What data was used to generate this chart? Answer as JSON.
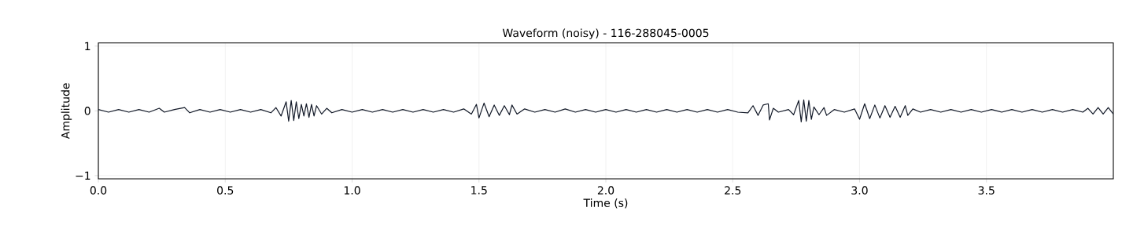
{
  "chart_data": {
    "type": "line",
    "title": "Waveform (noisy) - 116-288045-0005",
    "xlabel": "Time (s)",
    "ylabel": "Amplitude",
    "xlim": [
      0,
      4.0
    ],
    "ylim": [
      -1.05,
      1.05
    ],
    "xticks": [
      {
        "value": 0,
        "label": "0.0"
      },
      {
        "value": 0.5,
        "label": "0.5"
      },
      {
        "value": 1,
        "label": "1.0"
      },
      {
        "value": 1.5,
        "label": "1.5"
      },
      {
        "value": 2,
        "label": "2.0"
      },
      {
        "value": 2.5,
        "label": "2.5"
      },
      {
        "value": 3,
        "label": "3.0"
      },
      {
        "value": 3.5,
        "label": "3.5"
      }
    ],
    "yticks": [
      {
        "value": -1,
        "label": "−1"
      },
      0,
      1
    ],
    "grid": true,
    "marker": "none",
    "line_style": "solid",
    "series": [
      {
        "color": "#111827",
        "x": [
          0.0,
          0.04,
          0.08,
          0.12,
          0.16,
          0.2,
          0.24,
          0.26,
          0.3,
          0.34,
          0.36,
          0.4,
          0.44,
          0.48,
          0.52,
          0.56,
          0.6,
          0.64,
          0.68,
          0.7,
          0.72,
          0.74,
          0.75,
          0.76,
          0.77,
          0.78,
          0.79,
          0.8,
          0.81,
          0.82,
          0.83,
          0.84,
          0.85,
          0.86,
          0.88,
          0.9,
          0.92,
          0.96,
          1.0,
          1.04,
          1.08,
          1.12,
          1.16,
          1.2,
          1.24,
          1.28,
          1.32,
          1.36,
          1.4,
          1.44,
          1.47,
          1.49,
          1.5,
          1.52,
          1.54,
          1.56,
          1.58,
          1.6,
          1.62,
          1.63,
          1.65,
          1.68,
          1.72,
          1.76,
          1.8,
          1.84,
          1.88,
          1.92,
          1.96,
          2.0,
          2.04,
          2.08,
          2.12,
          2.16,
          2.2,
          2.24,
          2.28,
          2.32,
          2.36,
          2.4,
          2.44,
          2.48,
          2.52,
          2.56,
          2.58,
          2.6,
          2.62,
          2.64,
          2.645,
          2.66,
          2.68,
          2.72,
          2.74,
          2.76,
          2.77,
          2.78,
          2.79,
          2.8,
          2.81,
          2.82,
          2.84,
          2.86,
          2.87,
          2.9,
          2.94,
          2.98,
          3.0,
          3.02,
          3.04,
          3.06,
          3.08,
          3.1,
          3.12,
          3.14,
          3.16,
          3.18,
          3.19,
          3.21,
          3.24,
          3.28,
          3.32,
          3.36,
          3.4,
          3.44,
          3.48,
          3.52,
          3.56,
          3.6,
          3.64,
          3.68,
          3.72,
          3.76,
          3.8,
          3.84,
          3.88,
          3.9,
          3.92,
          3.94,
          3.96,
          3.98,
          4.0
        ],
        "values": [
          0.02,
          -0.02,
          0.02,
          -0.02,
          0.02,
          -0.02,
          0.04,
          -0.02,
          0.02,
          0.05,
          -0.03,
          0.02,
          -0.02,
          0.02,
          -0.02,
          0.02,
          -0.02,
          0.02,
          -0.03,
          0.05,
          -0.08,
          0.14,
          -0.16,
          0.16,
          -0.15,
          0.14,
          -0.12,
          0.1,
          -0.08,
          0.11,
          -0.1,
          0.1,
          -0.08,
          0.08,
          -0.05,
          0.04,
          -0.03,
          0.02,
          -0.02,
          0.02,
          -0.02,
          0.02,
          -0.02,
          0.02,
          -0.02,
          0.02,
          -0.02,
          0.02,
          -0.02,
          0.03,
          -0.05,
          0.1,
          -0.11,
          0.12,
          -0.09,
          0.09,
          -0.07,
          0.08,
          -0.06,
          0.09,
          -0.05,
          0.03,
          -0.02,
          0.02,
          -0.02,
          0.03,
          -0.02,
          0.02,
          -0.02,
          0.02,
          -0.02,
          0.02,
          -0.02,
          0.02,
          -0.02,
          0.02,
          -0.02,
          0.02,
          -0.02,
          0.02,
          -0.02,
          0.02,
          -0.02,
          -0.03,
          0.08,
          -0.07,
          0.09,
          0.11,
          -0.14,
          0.04,
          -0.02,
          0.02,
          -0.06,
          0.16,
          -0.17,
          0.17,
          -0.16,
          0.16,
          -0.13,
          0.06,
          -0.06,
          0.05,
          -0.07,
          0.02,
          -0.02,
          0.03,
          -0.13,
          0.11,
          -0.12,
          0.09,
          -0.11,
          0.08,
          -0.1,
          0.07,
          -0.1,
          0.08,
          -0.07,
          0.03,
          -0.02,
          0.02,
          -0.02,
          0.02,
          -0.02,
          0.02,
          -0.02,
          0.02,
          -0.02,
          0.02,
          -0.02,
          0.02,
          -0.02,
          0.02,
          -0.02,
          0.02,
          -0.02,
          0.04,
          -0.05,
          0.05,
          -0.05,
          0.05,
          -0.05
        ]
      }
    ]
  }
}
